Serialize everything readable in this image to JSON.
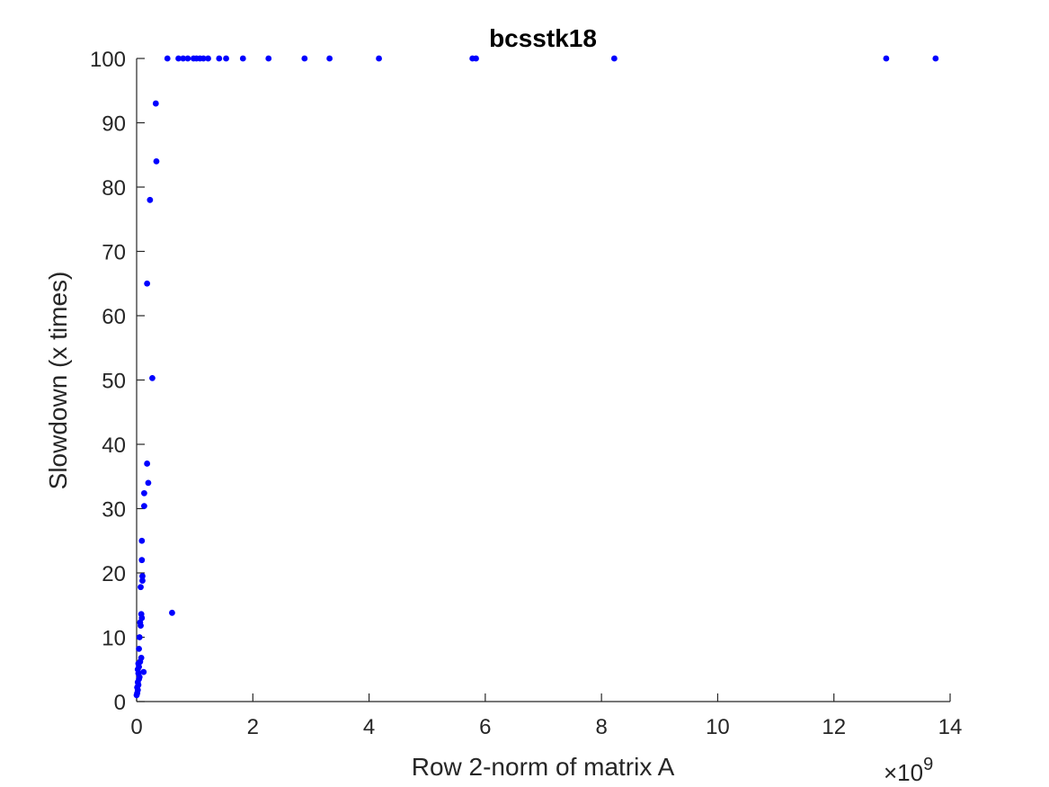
{
  "chart_data": {
    "type": "scatter",
    "title": "bcsstk18",
    "xlabel": "Row 2-norm of matrix A",
    "ylabel": "Slowdown (x times)",
    "x_exponent_label": "×10",
    "x_exponent_power": "9",
    "xlim": [
      0,
      14
    ],
    "ylim": [
      0,
      100
    ],
    "xticks": [
      0,
      2,
      4,
      6,
      8,
      10,
      12,
      14
    ],
    "yticks": [
      0,
      10,
      20,
      30,
      40,
      50,
      60,
      70,
      80,
      90,
      100
    ],
    "grid": false,
    "marker_color": "#0000ff",
    "points": [
      [
        0.0,
        1.0
      ],
      [
        0.01,
        1.3
      ],
      [
        0.02,
        1.8
      ],
      [
        0.01,
        2.2
      ],
      [
        0.03,
        2.6
      ],
      [
        0.02,
        3.0
      ],
      [
        0.04,
        3.5
      ],
      [
        0.05,
        3.8
      ],
      [
        0.03,
        4.4
      ],
      [
        0.12,
        4.6
      ],
      [
        0.02,
        5.0
      ],
      [
        0.04,
        5.4
      ],
      [
        0.03,
        5.9
      ],
      [
        0.06,
        6.2
      ],
      [
        0.08,
        6.8
      ],
      [
        0.04,
        8.2
      ],
      [
        0.05,
        10.0
      ],
      [
        0.07,
        11.8
      ],
      [
        0.06,
        12.3
      ],
      [
        0.09,
        13.0
      ],
      [
        0.08,
        13.6
      ],
      [
        0.61,
        13.8
      ],
      [
        0.07,
        17.8
      ],
      [
        0.1,
        18.8
      ],
      [
        0.1,
        19.5
      ],
      [
        0.09,
        22.0
      ],
      [
        0.09,
        25.0
      ],
      [
        0.13,
        30.4
      ],
      [
        0.13,
        32.4
      ],
      [
        0.2,
        34.0
      ],
      [
        0.18,
        37.0
      ],
      [
        0.27,
        50.3
      ],
      [
        0.18,
        65.0
      ],
      [
        0.23,
        78.0
      ],
      [
        0.34,
        84.0
      ],
      [
        0.33,
        93.0
      ],
      [
        0.53,
        100
      ],
      [
        0.72,
        100
      ],
      [
        0.8,
        100
      ],
      [
        0.88,
        100
      ],
      [
        0.98,
        100
      ],
      [
        1.03,
        100
      ],
      [
        1.09,
        100
      ],
      [
        1.15,
        100
      ],
      [
        1.23,
        100
      ],
      [
        1.42,
        100
      ],
      [
        1.54,
        100
      ],
      [
        1.83,
        100
      ],
      [
        2.27,
        100
      ],
      [
        2.89,
        100
      ],
      [
        3.32,
        100
      ],
      [
        4.17,
        100
      ],
      [
        5.78,
        100
      ],
      [
        5.84,
        100
      ],
      [
        8.22,
        100
      ],
      [
        12.9,
        100
      ],
      [
        13.75,
        100
      ]
    ]
  }
}
